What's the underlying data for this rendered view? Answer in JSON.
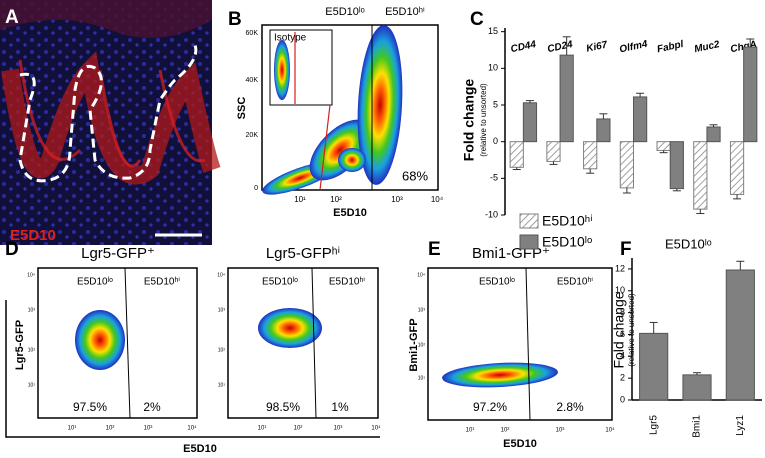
{
  "panel_labels": [
    "A",
    "B",
    "C",
    "D",
    "E",
    "F"
  ],
  "micrograph": {
    "label": "E5D10"
  },
  "flow_plots": [
    {
      "y_label": "SSC",
      "x_label": "E5D10",
      "gate_labels": [
        "E5D10ˡᵒ",
        "E5D10ʰⁱ"
      ],
      "percents": [
        "68%"
      ],
      "yticks": [
        "60K",
        "40K",
        "20K",
        "0"
      ],
      "xticks": [
        "10¹",
        "10²",
        "10³",
        "10⁴"
      ],
      "inset_label": "Isotype"
    },
    {
      "title": "Lgr5-GFP⁺",
      "y_label": "Lgr5-GFP",
      "gate_labels": [
        "E5D10ˡᵒ",
        "E5D10ʰⁱ"
      ],
      "percents": [
        "97.5%",
        "2%"
      ],
      "yticks": [
        "10⁴",
        "10³",
        "10²",
        "10¹"
      ],
      "xticks": [
        "10¹",
        "10²",
        "10³",
        "10⁴"
      ]
    },
    {
      "title": "Lgr5-GFPʰⁱ",
      "x_label": "E5D10",
      "gate_labels": [
        "E5D10ˡᵒ",
        "E5D10ʰⁱ"
      ],
      "percents": [
        "98.5%",
        "1%"
      ],
      "yticks": [
        "10⁴",
        "10³",
        "10²",
        "10¹"
      ],
      "xticks": [
        "10¹",
        "10²",
        "10³",
        "10⁴"
      ]
    },
    {
      "title": "Bmi1-GFP⁺",
      "y_label": "Bmi1-GFP",
      "x_label": "E5D10",
      "gate_labels": [
        "E5D10ˡᵒ",
        "E5D10ʰⁱ"
      ],
      "percents": [
        "97.2%",
        "2.8%"
      ],
      "yticks": [
        "10⁴",
        "10³",
        "10²",
        "10¹"
      ],
      "xticks": [
        "10¹",
        "10²",
        "10³",
        "10⁴"
      ]
    }
  ],
  "chart_data": [
    {
      "type": "bar",
      "y_label": "Fold change",
      "y_sublabel": "(relative to unsorted)",
      "categories": [
        "CD44",
        "CD24",
        "Ki67",
        "Olfm4",
        "Fabpl",
        "Muc2",
        "ChgA"
      ],
      "series": [
        {
          "name": "E5D10ʰⁱ",
          "color": "#808080",
          "pattern": "hatch",
          "values": [
            -3.5,
            -2.7,
            -3.7,
            -6.3,
            -1.2,
            -9.2,
            -7.2
          ],
          "errors": [
            0.3,
            0.4,
            0.6,
            0.7,
            0.3,
            0.6,
            0.6
          ]
        },
        {
          "name": "E5D10ˡᵒ",
          "color": "#808080",
          "values": [
            5.3,
            11.8,
            3.1,
            6.1,
            -6.4,
            2.0,
            12.9
          ],
          "errors": [
            0.3,
            2.5,
            0.7,
            0.5,
            0.3,
            0.3,
            1.1
          ]
        }
      ],
      "ylim": [
        -10,
        15.5
      ],
      "yticks": [
        -10,
        -5,
        0,
        5,
        10,
        15
      ],
      "legend": "bottom-left"
    },
    {
      "type": "bar",
      "title": "E5D10ˡᵒ",
      "y_label": "Fold change",
      "y_sublabel": "(relative to unsorted)",
      "categories": [
        "Lgr5",
        "Bmi1",
        "Lyz1"
      ],
      "values": [
        6.1,
        2.3,
        11.9
      ],
      "errors": [
        1.0,
        0.2,
        0.8
      ],
      "color": "#808080",
      "ylim": [
        0,
        13
      ],
      "yticks": [
        0,
        2,
        4,
        6,
        8,
        10,
        12
      ]
    }
  ]
}
